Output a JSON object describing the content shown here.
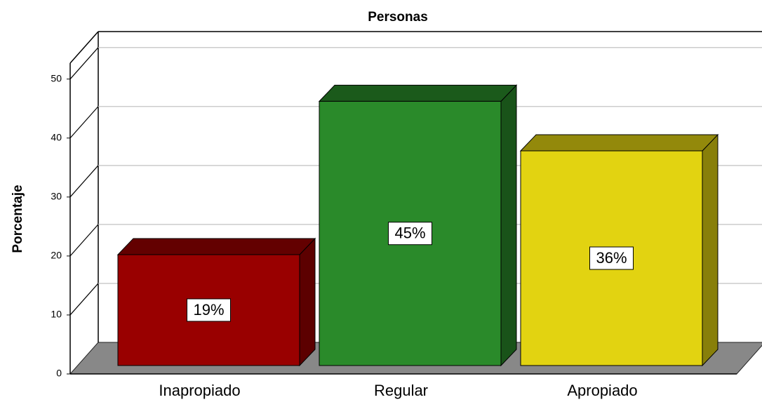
{
  "chart_data": {
    "type": "bar3d",
    "title": "Personas",
    "y_label": "Porcentaje",
    "categories": [
      "Inapropiado",
      "Regular",
      "Apropiado"
    ],
    "values": [
      18.8,
      44.8,
      36.4
    ],
    "value_labels": [
      "19%",
      "45%",
      "36%"
    ],
    "colors": [
      "#990000",
      "#2a8a2a",
      "#e2d311"
    ],
    "ylim": [
      0,
      52.7
    ],
    "yticks": [
      0,
      10,
      20,
      30,
      40,
      50
    ],
    "grid": true
  }
}
